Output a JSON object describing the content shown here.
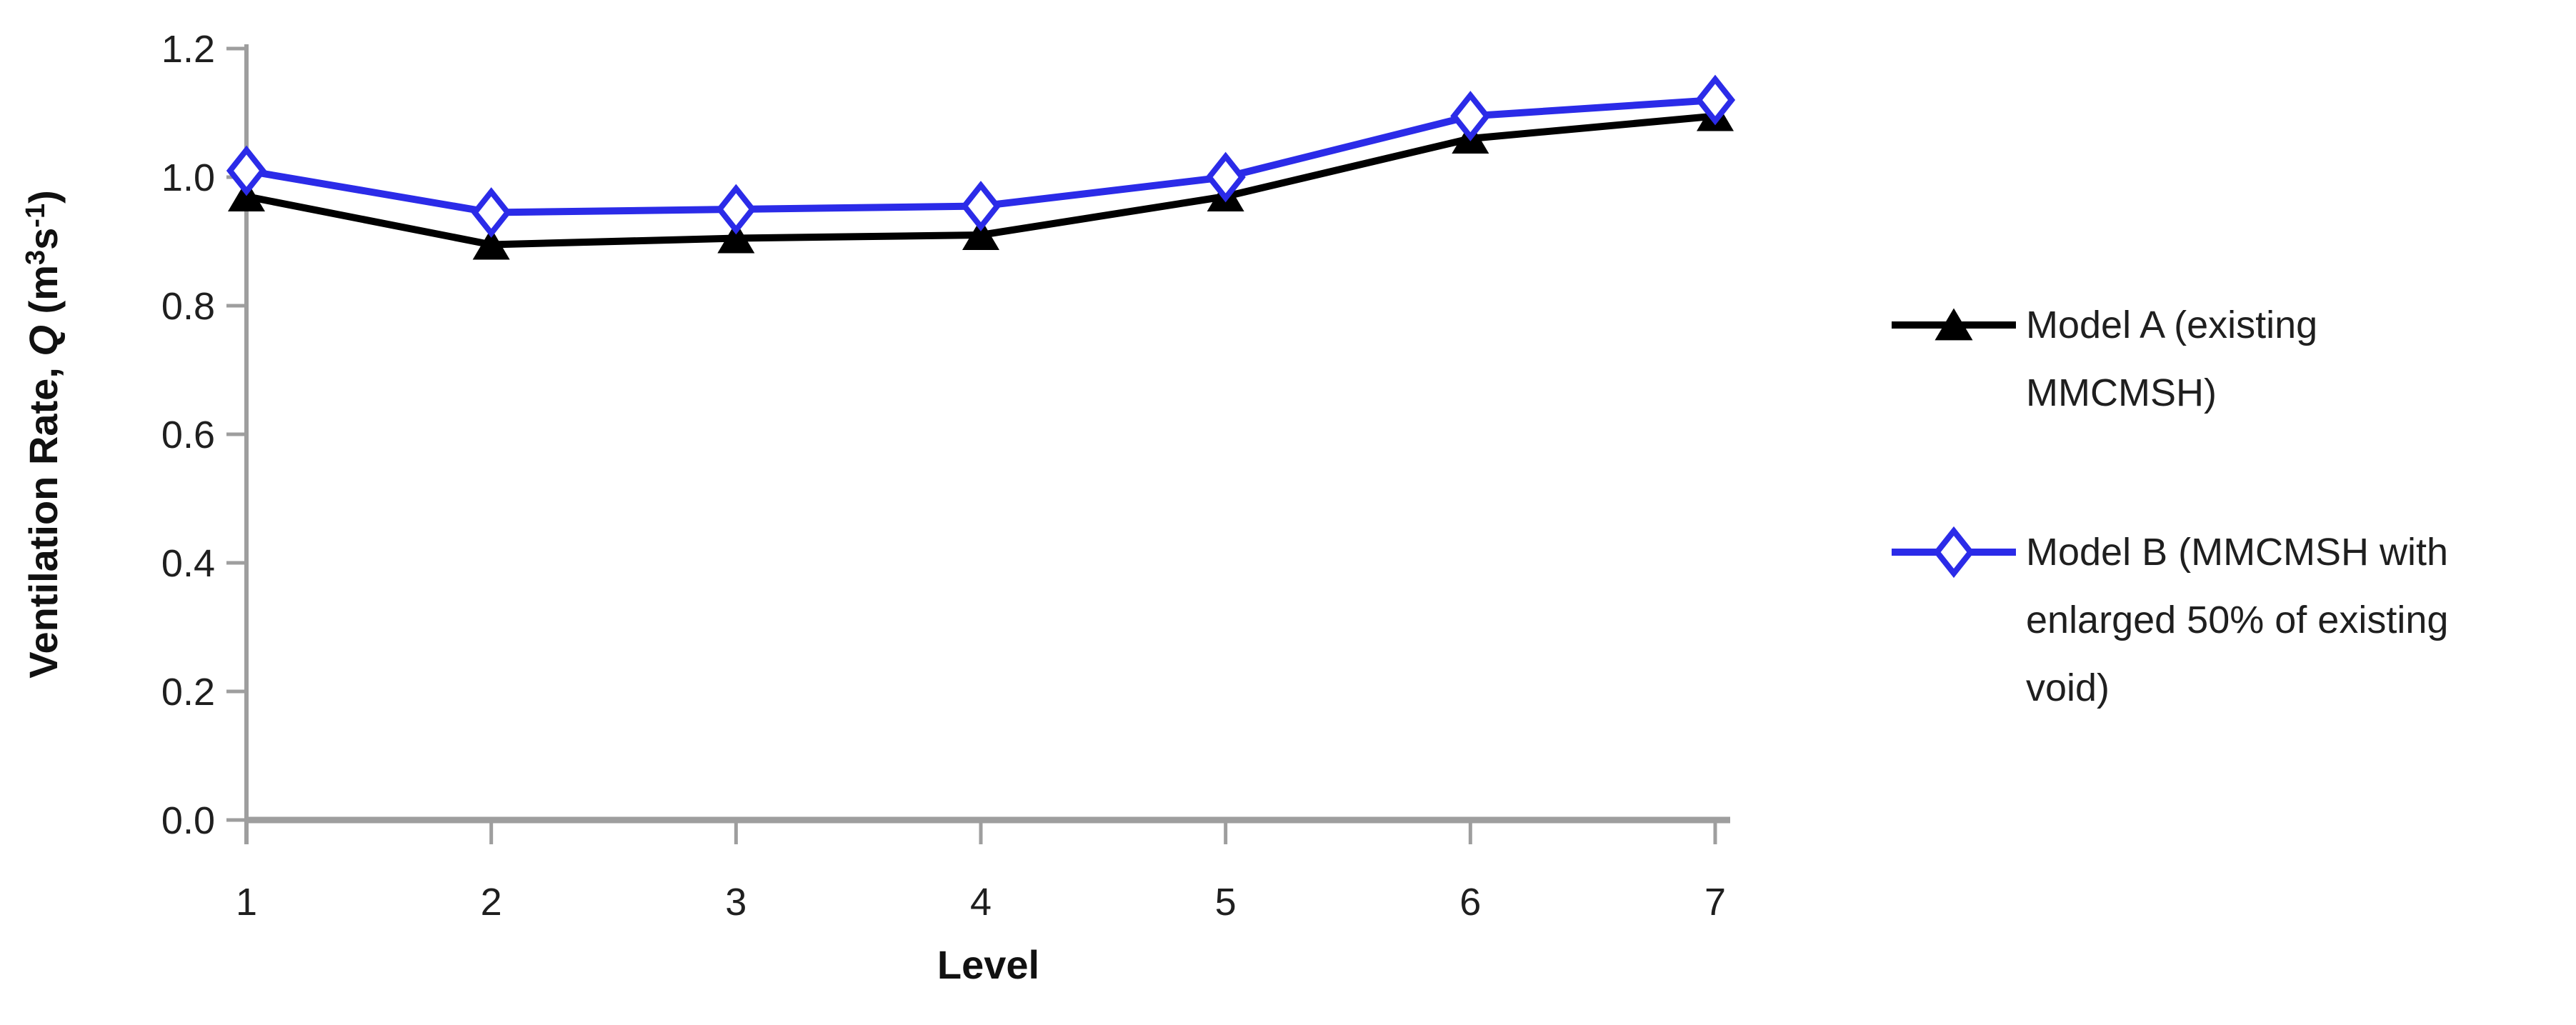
{
  "chart_data": {
    "type": "line",
    "title": "",
    "x": [
      1,
      2,
      3,
      4,
      5,
      6,
      7
    ],
    "xlabel": "Level",
    "ylabel": "Ventilation Rate, Q (m³s⁻¹)",
    "ylabel_parts": [
      {
        "text": "Ventilation Rate, ",
        "italic": false,
        "sup": false
      },
      {
        "text": "Q",
        "italic": true,
        "sup": false
      },
      {
        "text": " (m",
        "italic": false,
        "sup": false
      },
      {
        "text": "3",
        "italic": false,
        "sup": true
      },
      {
        "text": "s",
        "italic": false,
        "sup": false
      },
      {
        "text": "-1",
        "italic": false,
        "sup": true
      },
      {
        "text": ")",
        "italic": false,
        "sup": false
      }
    ],
    "xlim": [
      1,
      7
    ],
    "ylim": [
      0,
      1.2
    ],
    "xtick_labels": [
      "1",
      "2",
      "3",
      "4",
      "5",
      "6",
      "7"
    ],
    "ytick_labels": [
      "0.0",
      "0.2",
      "0.4",
      "0.6",
      "0.8",
      "1.0",
      "1.2"
    ],
    "grid": false,
    "legend_position": "right",
    "series": [
      {
        "name": "Model A (existing MMCMSH)",
        "marker": "triangle-filled",
        "color": "#000000",
        "values": [
          0.97,
          0.895,
          0.905,
          0.91,
          0.97,
          1.06,
          1.095
        ]
      },
      {
        "name": "Model B (MMCMSH with enlarged 50% of existing void)",
        "marker": "diamond-open",
        "color": "#2B2BE8",
        "values": [
          1.01,
          0.945,
          0.95,
          0.955,
          1.0,
          1.095,
          1.12
        ]
      }
    ]
  },
  "legend": {
    "items": [
      {
        "series": 0,
        "lines": [
          "Model A (existing",
          "MMCMSH)"
        ]
      },
      {
        "series": 1,
        "lines": [
          "Model B (MMCMSH with",
          "enlarged 50% of existing",
          "void)"
        ]
      }
    ]
  },
  "style": {
    "axis_color": "#9e9e9e",
    "tick_label_color": "#1f1f1f",
    "series_a_color": "#000000",
    "series_b_color": "#2B2BE8",
    "background": "#ffffff"
  }
}
